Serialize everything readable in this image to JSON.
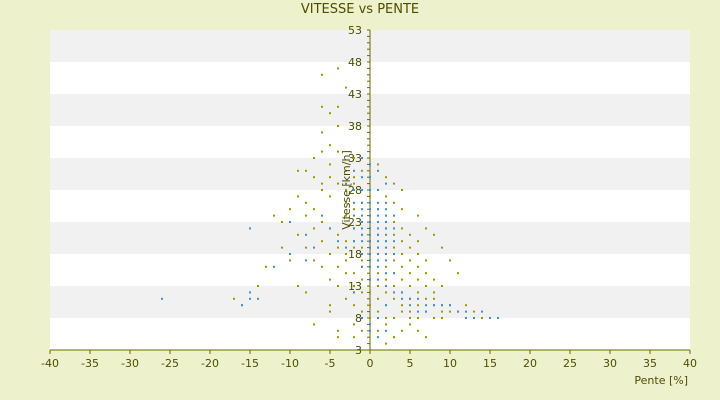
{
  "chart_data": {
    "type": "scatter",
    "title": "VITESSE vs PENTE",
    "xlabel": "Pente [%]",
    "ylabel": "Vitesse [km/h]",
    "xlim": [
      -40,
      40
    ],
    "ylim": [
      3,
      53
    ],
    "x_ticks": [
      -40,
      -35,
      -30,
      -25,
      -20,
      -15,
      -10,
      -5,
      0,
      5,
      10,
      15,
      20,
      25,
      30,
      35,
      40
    ],
    "y_ticks_labeled": [
      3,
      8,
      13,
      18,
      23,
      28,
      33,
      38,
      43,
      48,
      53
    ],
    "grid": "horizontal bands",
    "colors": {
      "background": "#eef2cc",
      "plot_band_white": "#ffffff",
      "plot_band_gray": "#f1f1f1",
      "axis": "#6b6b00",
      "series_a": "#9a9a00",
      "series_b": "#3a8fd8"
    },
    "series": [
      {
        "color": "#9a9a00",
        "points": [
          [
            -6,
            46
          ],
          [
            -4,
            47
          ],
          [
            -3,
            44
          ],
          [
            -6,
            41
          ],
          [
            -5,
            40
          ],
          [
            -4,
            41
          ],
          [
            -6,
            37
          ],
          [
            -4,
            38
          ],
          [
            -5,
            35
          ],
          [
            -6,
            34
          ],
          [
            -7,
            33
          ],
          [
            -4,
            34
          ],
          [
            -8,
            31
          ],
          [
            -7,
            30
          ],
          [
            -5,
            32
          ],
          [
            -3,
            31
          ],
          [
            -2,
            33
          ],
          [
            -6,
            28
          ],
          [
            -9,
            27
          ],
          [
            -8,
            26
          ],
          [
            -5,
            27
          ],
          [
            -4,
            29
          ],
          [
            -2,
            29
          ],
          [
            -10,
            25
          ],
          [
            -7,
            25
          ],
          [
            -3,
            26
          ],
          [
            -1,
            28
          ],
          [
            -11,
            23
          ],
          [
            -8,
            24
          ],
          [
            -6,
            23
          ],
          [
            -5,
            22
          ],
          [
            -3,
            24
          ],
          [
            -2,
            25
          ],
          [
            -1,
            26
          ],
          [
            0,
            27
          ],
          [
            1,
            28
          ],
          [
            2,
            27
          ],
          [
            -9,
            21
          ],
          [
            -7,
            22
          ],
          [
            -4,
            21
          ],
          [
            -2,
            22
          ],
          [
            -1,
            23
          ],
          [
            0,
            24
          ],
          [
            1,
            25
          ],
          [
            2,
            24
          ],
          [
            3,
            26
          ],
          [
            4,
            25
          ],
          [
            -8,
            19
          ],
          [
            -6,
            20
          ],
          [
            -4,
            19
          ],
          [
            -3,
            20
          ],
          [
            -2,
            20
          ],
          [
            -1,
            21
          ],
          [
            0,
            22
          ],
          [
            1,
            23
          ],
          [
            2,
            22
          ],
          [
            3,
            23
          ],
          [
            4,
            22
          ],
          [
            5,
            21
          ],
          [
            -7,
            17
          ],
          [
            -5,
            18
          ],
          [
            -3,
            18
          ],
          [
            -2,
            19
          ],
          [
            -1,
            19
          ],
          [
            0,
            20
          ],
          [
            1,
            21
          ],
          [
            2,
            20
          ],
          [
            3,
            21
          ],
          [
            4,
            20
          ],
          [
            5,
            19
          ],
          [
            6,
            20
          ],
          [
            -6,
            16
          ],
          [
            -4,
            16
          ],
          [
            -3,
            17
          ],
          [
            -1,
            17
          ],
          [
            0,
            18
          ],
          [
            1,
            19
          ],
          [
            2,
            18
          ],
          [
            3,
            19
          ],
          [
            4,
            18
          ],
          [
            5,
            17
          ],
          [
            6,
            18
          ],
          [
            7,
            17
          ],
          [
            -5,
            14
          ],
          [
            -3,
            15
          ],
          [
            -2,
            15
          ],
          [
            -1,
            16
          ],
          [
            0,
            16
          ],
          [
            1,
            17
          ],
          [
            2,
            16
          ],
          [
            3,
            17
          ],
          [
            4,
            16
          ],
          [
            5,
            15
          ],
          [
            6,
            16
          ],
          [
            7,
            15
          ],
          [
            8,
            14
          ],
          [
            -4,
            13
          ],
          [
            -2,
            13
          ],
          [
            -1,
            14
          ],
          [
            0,
            14
          ],
          [
            1,
            15
          ],
          [
            2,
            14
          ],
          [
            3,
            15
          ],
          [
            4,
            14
          ],
          [
            5,
            13
          ],
          [
            6,
            14
          ],
          [
            7,
            13
          ],
          [
            8,
            12
          ],
          [
            9,
            13
          ],
          [
            -3,
            11
          ],
          [
            -1,
            12
          ],
          [
            0,
            12
          ],
          [
            1,
            13
          ],
          [
            2,
            12
          ],
          [
            3,
            13
          ],
          [
            4,
            12
          ],
          [
            5,
            11
          ],
          [
            6,
            12
          ],
          [
            7,
            11
          ],
          [
            8,
            11
          ],
          [
            9,
            10
          ],
          [
            10,
            10
          ],
          [
            -2,
            10
          ],
          [
            0,
            10
          ],
          [
            1,
            11
          ],
          [
            2,
            10
          ],
          [
            3,
            11
          ],
          [
            4,
            10
          ],
          [
            5,
            9
          ],
          [
            6,
            10
          ],
          [
            7,
            9
          ],
          [
            8,
            10
          ],
          [
            9,
            9
          ],
          [
            -5,
            10
          ],
          [
            -5,
            9
          ],
          [
            -1,
            9
          ],
          [
            0,
            8
          ],
          [
            1,
            9
          ],
          [
            2,
            8
          ],
          [
            3,
            8
          ],
          [
            4,
            9
          ],
          [
            5,
            8
          ],
          [
            6,
            8
          ],
          [
            -2,
            7
          ],
          [
            -1,
            6
          ],
          [
            0,
            7
          ],
          [
            1,
            6
          ],
          [
            2,
            7
          ],
          [
            3,
            5
          ],
          [
            -2,
            5
          ],
          [
            -4,
            6
          ],
          [
            -4,
            5
          ],
          [
            -7,
            7
          ],
          [
            -8,
            12
          ],
          [
            -9,
            13
          ],
          [
            -10,
            17
          ],
          [
            -13,
            16
          ],
          [
            -14,
            13
          ],
          [
            -17,
            11
          ],
          [
            -16,
            10
          ],
          [
            -11,
            19
          ],
          [
            -12,
            24
          ],
          [
            -6,
            29
          ],
          [
            -9,
            31
          ],
          [
            -5,
            30
          ],
          [
            -3,
            28
          ],
          [
            -2,
            30
          ],
          [
            -1,
            31
          ],
          [
            1,
            32
          ],
          [
            2,
            30
          ],
          [
            3,
            29
          ],
          [
            4,
            28
          ],
          [
            6,
            24
          ],
          [
            7,
            22
          ],
          [
            8,
            21
          ],
          [
            9,
            19
          ],
          [
            10,
            17
          ],
          [
            11,
            15
          ],
          [
            12,
            10
          ],
          [
            13,
            9
          ],
          [
            14,
            8
          ],
          [
            3,
            5
          ],
          [
            2,
            4
          ],
          [
            7,
            5
          ],
          [
            6,
            6
          ],
          [
            5,
            7
          ],
          [
            4,
            6
          ],
          [
            8,
            8
          ],
          [
            10,
            9
          ],
          [
            12,
            8
          ],
          [
            11,
            9
          ],
          [
            9,
            8
          ]
        ]
      },
      {
        "color": "#3a8fd8",
        "points": [
          [
            -1,
            33
          ],
          [
            0,
            32
          ],
          [
            1,
            31
          ],
          [
            -2,
            31
          ],
          [
            -1,
            30
          ],
          [
            0,
            30
          ],
          [
            2,
            29
          ],
          [
            -3,
            29
          ],
          [
            -2,
            28
          ],
          [
            -1,
            28
          ],
          [
            0,
            28
          ],
          [
            1,
            28
          ],
          [
            -2,
            26
          ],
          [
            -1,
            26
          ],
          [
            0,
            26
          ],
          [
            1,
            26
          ],
          [
            2,
            26
          ],
          [
            -1,
            25
          ],
          [
            0,
            25
          ],
          [
            1,
            25
          ],
          [
            2,
            25
          ],
          [
            -2,
            24
          ],
          [
            -1,
            24
          ],
          [
            0,
            24
          ],
          [
            1,
            24
          ],
          [
            2,
            24
          ],
          [
            3,
            24
          ],
          [
            -1,
            23
          ],
          [
            0,
            23
          ],
          [
            1,
            23
          ],
          [
            2,
            23
          ],
          [
            -2,
            22
          ],
          [
            -1,
            22
          ],
          [
            0,
            22
          ],
          [
            1,
            22
          ],
          [
            2,
            22
          ],
          [
            3,
            22
          ],
          [
            -1,
            21
          ],
          [
            0,
            21
          ],
          [
            1,
            21
          ],
          [
            2,
            21
          ],
          [
            -2,
            20
          ],
          [
            -1,
            20
          ],
          [
            0,
            20
          ],
          [
            1,
            20
          ],
          [
            2,
            20
          ],
          [
            3,
            20
          ],
          [
            0,
            19
          ],
          [
            1,
            19
          ],
          [
            2,
            19
          ],
          [
            -1,
            18
          ],
          [
            0,
            18
          ],
          [
            1,
            18
          ],
          [
            2,
            18
          ],
          [
            3,
            18
          ],
          [
            0,
            17
          ],
          [
            1,
            17
          ],
          [
            2,
            17
          ],
          [
            -1,
            16
          ],
          [
            0,
            16
          ],
          [
            1,
            16
          ],
          [
            2,
            15
          ],
          [
            3,
            15
          ],
          [
            0,
            14
          ],
          [
            1,
            14
          ],
          [
            2,
            13
          ],
          [
            3,
            12
          ],
          [
            4,
            12
          ],
          [
            5,
            11
          ],
          [
            6,
            11
          ],
          [
            7,
            10
          ],
          [
            8,
            10
          ],
          [
            9,
            10
          ],
          [
            10,
            10
          ],
          [
            11,
            9
          ],
          [
            12,
            9
          ],
          [
            13,
            8
          ],
          [
            14,
            9
          ],
          [
            15,
            8
          ],
          [
            16,
            8
          ],
          [
            12,
            8
          ],
          [
            7,
            9
          ],
          [
            6,
            9
          ],
          [
            5,
            10
          ],
          [
            4,
            11
          ],
          [
            -26,
            11
          ],
          [
            -16,
            10
          ],
          [
            -15,
            12
          ],
          [
            -14,
            11
          ],
          [
            -15,
            11
          ],
          [
            -12,
            16
          ],
          [
            -10,
            18
          ],
          [
            -8,
            17
          ],
          [
            -7,
            19
          ],
          [
            -15,
            22
          ],
          [
            -10,
            23
          ],
          [
            -8,
            21
          ],
          [
            -6,
            24
          ],
          [
            -5,
            22
          ],
          [
            -4,
            20
          ],
          [
            -3,
            19
          ],
          [
            0,
            7
          ],
          [
            0,
            6
          ],
          [
            1,
            5
          ],
          [
            2,
            6
          ],
          [
            -1,
            8
          ],
          [
            1,
            8
          ],
          [
            2,
            10
          ],
          [
            -2,
            12
          ]
        ]
      }
    ]
  }
}
